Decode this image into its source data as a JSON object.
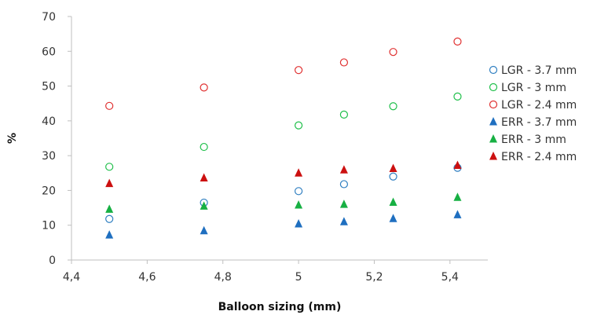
{
  "chart_data": {
    "type": "scatter",
    "title": "",
    "xlabel": "Balloon sizing (mm)",
    "ylabel": "%",
    "xlim": [
      4.4,
      5.5
    ],
    "ylim": [
      0,
      70
    ],
    "x_ticks": [
      "4,4",
      "4,6",
      "4,8",
      "5",
      "5,2",
      "5,4"
    ],
    "y_ticks": [
      "0",
      "10",
      "20",
      "30",
      "40",
      "50",
      "60",
      "70"
    ],
    "grid": false,
    "legend_position": "right",
    "x": [
      4.5,
      4.75,
      5.0,
      5.12,
      5.25,
      5.42
    ],
    "series": [
      {
        "name": "LGR - 3.7 mm",
        "marker": "circle-open",
        "color": "#2f7fc1",
        "values": [
          11.8,
          16.5,
          19.8,
          21.8,
          24.0,
          26.5
        ]
      },
      {
        "name": "LGR - 3 mm",
        "marker": "circle-open",
        "color": "#1fbf4a",
        "values": [
          26.8,
          32.5,
          38.7,
          41.8,
          44.2,
          47.0
        ]
      },
      {
        "name": "LGR - 2.4 mm",
        "marker": "circle-open",
        "color": "#e03030",
        "values": [
          44.3,
          49.6,
          54.6,
          56.8,
          59.8,
          62.8
        ]
      },
      {
        "name": "ERR - 3.7 mm",
        "marker": "triangle-filled",
        "color": "#1f6fc0",
        "values": [
          7.2,
          8.4,
          10.4,
          11.0,
          11.9,
          13.0
        ]
      },
      {
        "name": "ERR - 3 mm",
        "marker": "triangle-filled",
        "color": "#17b043",
        "values": [
          14.6,
          15.5,
          15.8,
          16.0,
          16.6,
          18.0
        ]
      },
      {
        "name": "ERR - 2.4 mm",
        "marker": "triangle-filled",
        "color": "#cc1010",
        "values": [
          22.0,
          23.6,
          25.0,
          25.9,
          26.3,
          27.2
        ]
      }
    ]
  }
}
